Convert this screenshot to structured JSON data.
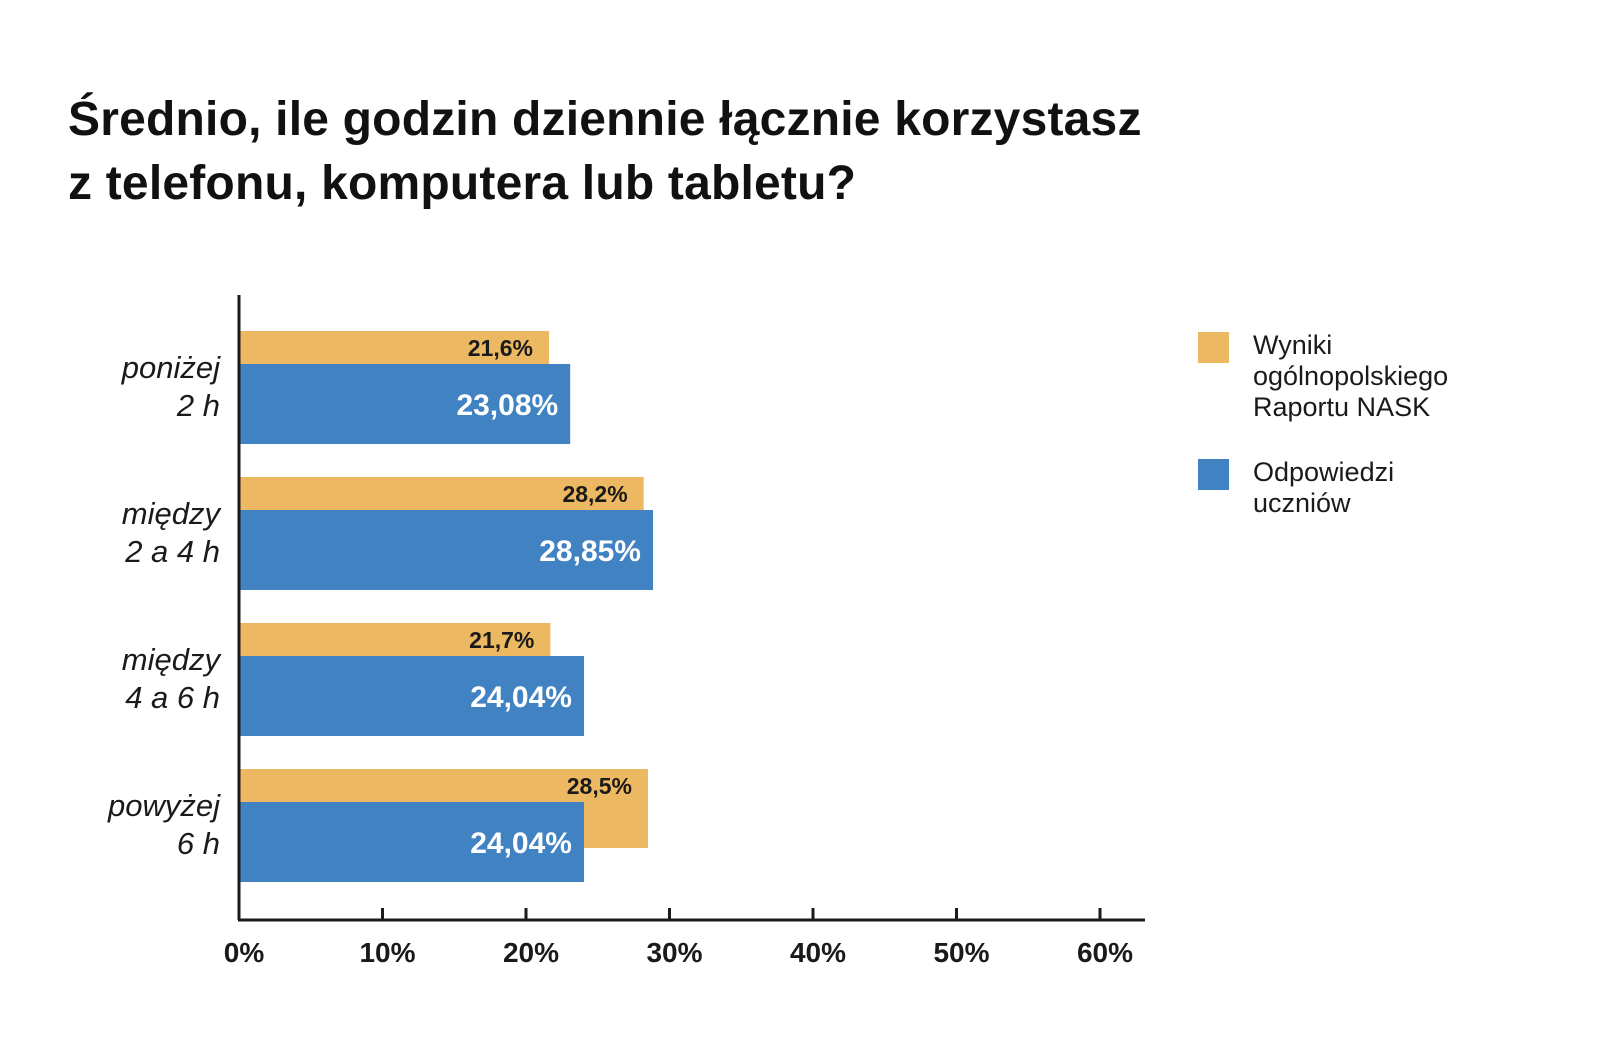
{
  "title": {
    "line1": "Średnio, ile godzin dziennie łącznie korzystasz",
    "line2": "z telefonu, komputera lub tabletu?"
  },
  "colors": {
    "nask": "#EDB862",
    "students": "#4182C3",
    "axis": "#1a1a1a"
  },
  "chart_data": {
    "type": "bar",
    "orientation": "horizontal",
    "title": "Średnio, ile godzin dziennie łącznie korzystasz z telefonu, komputera lub tabletu?",
    "categories": [
      [
        "poniżej",
        "2 h"
      ],
      [
        "między",
        "2 a 4 h"
      ],
      [
        "między",
        "4 a 6 h"
      ],
      [
        "powyżej",
        "6 h"
      ]
    ],
    "series": [
      {
        "name": "Wyniki ogólnopolskiego Raportu NASK",
        "legend_lines": [
          "Wyniki",
          "ogólnopolskiego",
          "Raportu NASK"
        ],
        "color": "#EDB862",
        "values": [
          21.6,
          28.2,
          21.7,
          28.5
        ],
        "labels": [
          "21,6%",
          "28,2%",
          "21,7%",
          "28,5%"
        ]
      },
      {
        "name": "Odpowiedzi uczniów",
        "legend_lines": [
          "Odpowiedzi",
          "uczniów"
        ],
        "color": "#4182C3",
        "values": [
          23.08,
          28.85,
          24.04,
          24.04
        ],
        "labels": [
          "23,08%",
          "28,85%",
          "24,04%",
          "24,04%"
        ]
      }
    ],
    "x_ticks": [
      "0%",
      "10%",
      "20%",
      "30%",
      "40%",
      "50%",
      "60%"
    ],
    "xlim": [
      0,
      60
    ],
    "grid": false,
    "legend_position": "right"
  }
}
